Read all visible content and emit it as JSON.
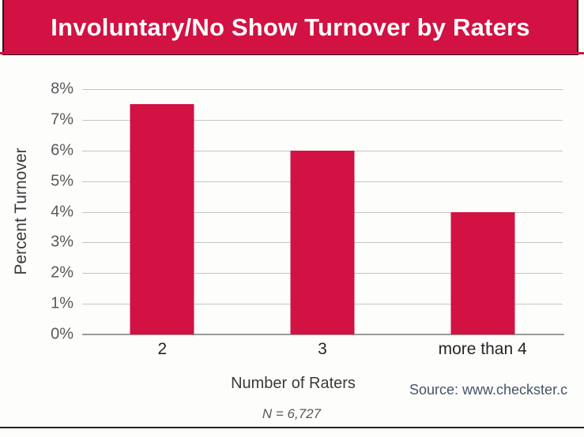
{
  "colors": {
    "banner_bg": "#d11243",
    "banner_border": "#1d1d1d",
    "bar": "#d11243",
    "gridline": "#c4c4c4",
    "axis_line": "#9a9a9a",
    "tick_text": "#595959",
    "label_text": "#3a3a3a",
    "category_text": "#262626",
    "source_text": "#44546a",
    "note_text": "#595959",
    "bottom_rule": "#262626"
  },
  "chart_data": {
    "type": "bar",
    "title": "Involuntary/No Show Turnover by Raters",
    "categories": [
      "2",
      "3",
      "more than 4"
    ],
    "values": [
      7.5,
      6,
      4
    ],
    "unit": "%",
    "xlabel": "Number of Raters",
    "ylabel": "Percent Turnover",
    "ylim": [
      0,
      8
    ],
    "ytick_step": 1,
    "ytick_labels": [
      "0%",
      "1%",
      "2%",
      "3%",
      "4%",
      "5%",
      "6%",
      "7%",
      "8%"
    ],
    "grid": true,
    "legend": false,
    "bar_color": "#d11243"
  },
  "footer": {
    "note": "N = 6,727",
    "source": "Source: www.checkster.c"
  }
}
